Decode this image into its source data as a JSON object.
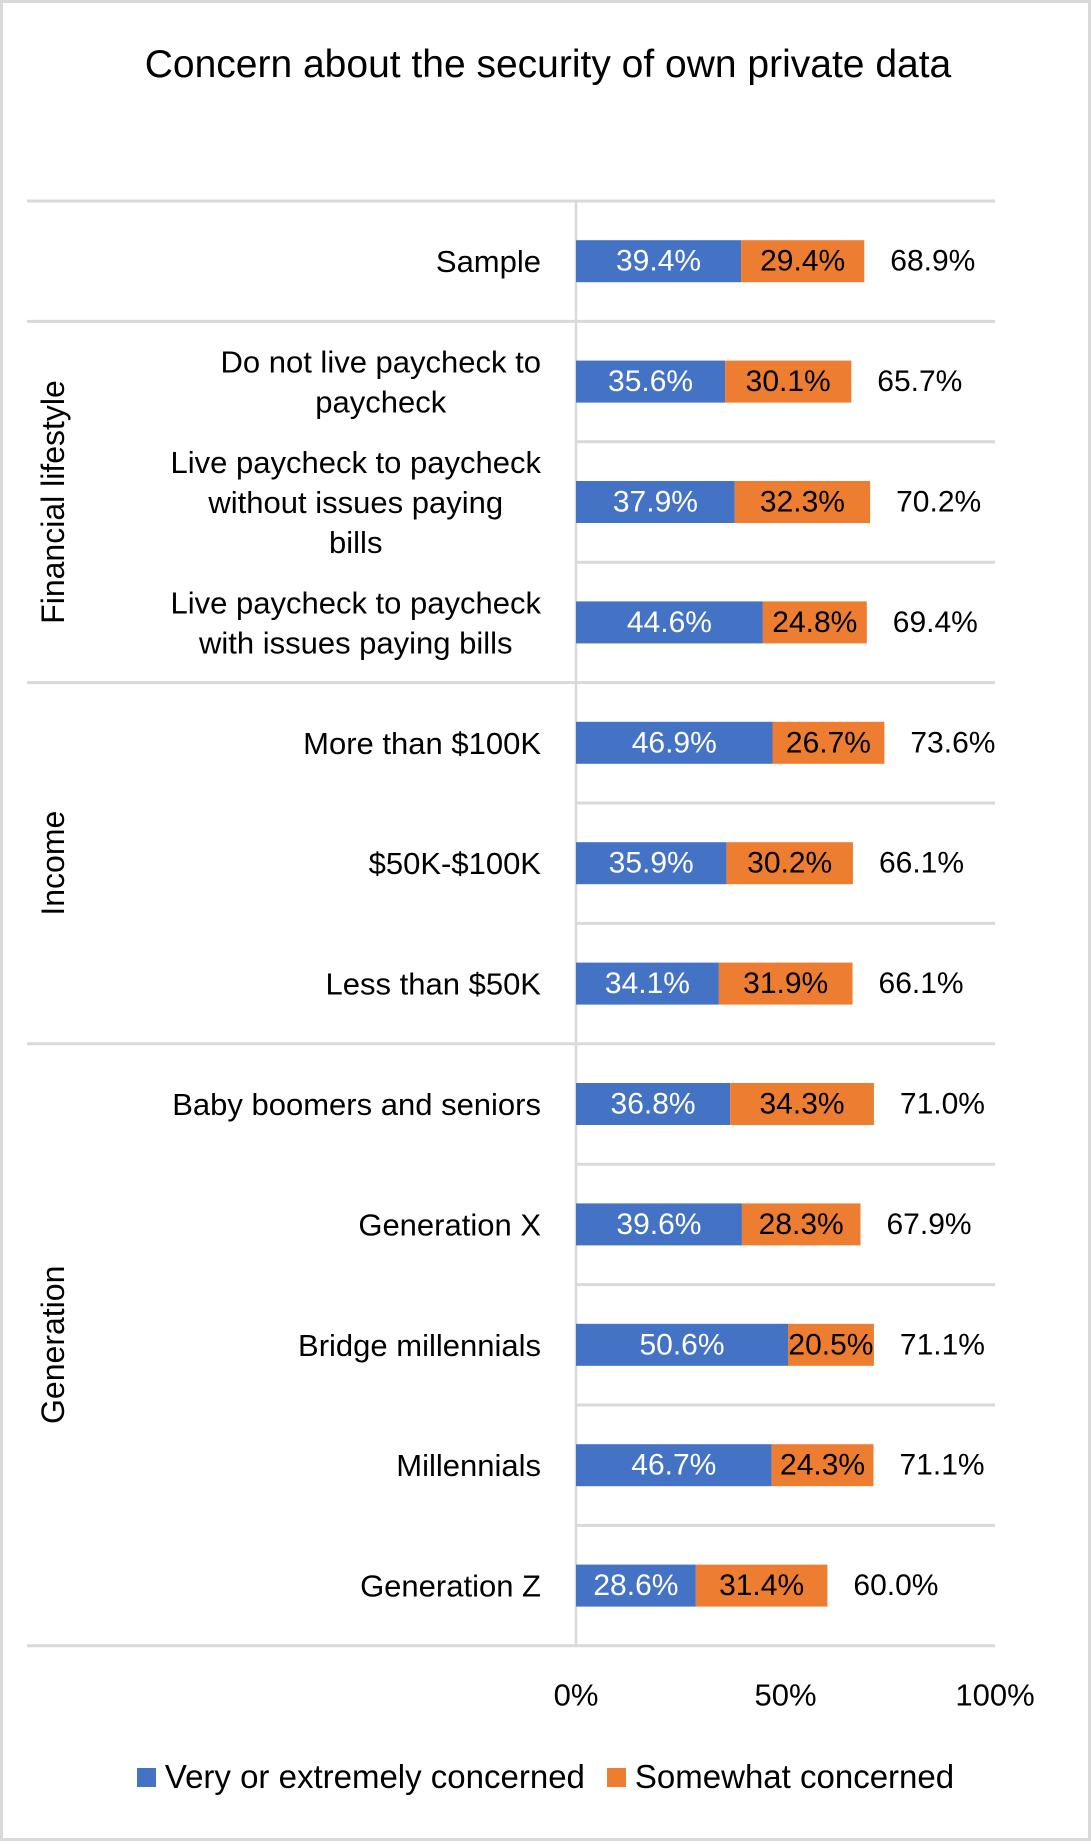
{
  "chart_data": {
    "type": "bar",
    "orientation": "horizontal",
    "stacked": true,
    "title": "Concern about the security of own private data",
    "xlabel": "",
    "ylabel": "",
    "xlim": [
      0,
      100
    ],
    "x_ticks": [
      "0%",
      "50%",
      "100%"
    ],
    "x_tick_values": [
      0,
      50,
      100
    ],
    "grid": false,
    "legend_position": "bottom",
    "groups": [
      {
        "name": "",
        "categories": [
          "Sample"
        ]
      },
      {
        "name": "Financial lifestyle",
        "categories": [
          "Do not live paycheck to paycheck",
          "Live paycheck to paycheck without issues paying bills",
          "Live paycheck to paycheck with issues paying bills"
        ]
      },
      {
        "name": "Income",
        "categories": [
          "More than $100K",
          "$50K-$100K",
          "Less than $50K"
        ]
      },
      {
        "name": "Generation",
        "categories": [
          "Baby boomers and seniors",
          "Generation X",
          "Bridge millennials",
          "Millennials",
          "Generation Z"
        ]
      }
    ],
    "categories": [
      "Sample",
      "Do not live paycheck to paycheck",
      "Live paycheck to paycheck without issues paying bills",
      "Live paycheck to paycheck with issues paying bills",
      "More than $100K",
      "$50K-$100K",
      "Less than $50K",
      "Baby boomers and seniors",
      "Generation X",
      "Bridge millennials",
      "Millennials",
      "Generation Z"
    ],
    "series": [
      {
        "name": "Very or extremely concerned",
        "color": "#4472C4",
        "label_color": "#ffffff",
        "values": [
          39.4,
          35.6,
          37.9,
          44.6,
          46.9,
          35.9,
          34.1,
          36.8,
          39.6,
          50.6,
          46.7,
          28.6
        ],
        "labels": [
          "39.4%",
          "35.6%",
          "37.9%",
          "44.6%",
          "46.9%",
          "35.9%",
          "34.1%",
          "36.8%",
          "39.6%",
          "50.6%",
          "46.7%",
          "28.6%"
        ]
      },
      {
        "name": "Somewhat concerned",
        "color": "#ED7D31",
        "label_color": "#000000",
        "values": [
          29.4,
          30.1,
          32.3,
          24.8,
          26.7,
          30.2,
          31.9,
          34.3,
          28.3,
          20.5,
          24.3,
          31.4
        ],
        "labels": [
          "29.4%",
          "30.1%",
          "32.3%",
          "24.8%",
          "26.7%",
          "30.2%",
          "31.9%",
          "34.3%",
          "28.3%",
          "20.5%",
          "24.3%",
          "31.4%"
        ]
      }
    ],
    "totals": [
      68.9,
      65.7,
      70.2,
      69.4,
      73.6,
      66.1,
      66.1,
      71.0,
      67.9,
      71.1,
      71.1,
      60.0
    ],
    "total_labels": [
      "68.9%",
      "65.7%",
      "70.2%",
      "69.4%",
      "73.6%",
      "66.1%",
      "66.1%",
      "71.0%",
      "67.9%",
      "71.1%",
      "71.1%",
      "60.0%"
    ]
  },
  "colors": {
    "border": "#d9d9d9",
    "gridline": "#d9d9d9",
    "text": "#000000"
  },
  "legend": {
    "items": [
      {
        "label": "Very or extremely concerned",
        "color": "#4472C4"
      },
      {
        "label": "Somewhat concerned",
        "color": "#ED7D31"
      }
    ]
  }
}
